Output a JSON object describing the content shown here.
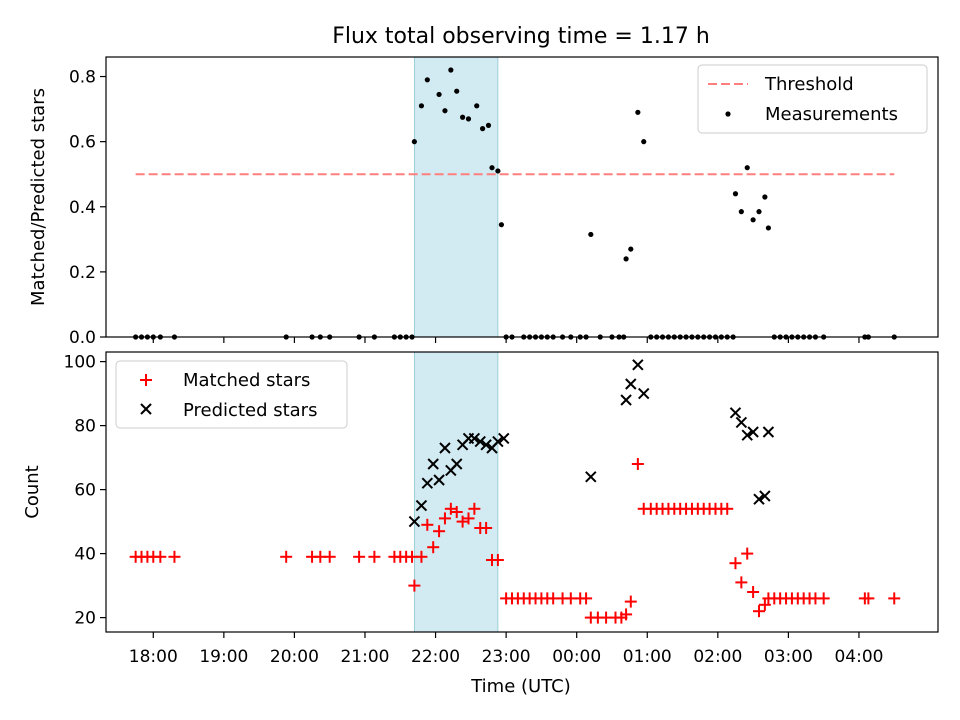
{
  "title": "Flux total observing time = 1.17 h",
  "x_axis_label": "Time (UTC)",
  "x_ticks": [
    "18:00",
    "19:00",
    "20:00",
    "21:00",
    "22:00",
    "23:00",
    "00:00",
    "01:00",
    "02:00",
    "03:00",
    "04:00"
  ],
  "colors": {
    "measurements": "#000000",
    "threshold": "#ff7f7f",
    "matched": "#ff0000",
    "predicted": "#000000",
    "shade": "#add8e6"
  },
  "chart_data": [
    {
      "type": "scatter",
      "ylabel": "Matched/Predicted stars",
      "ylim": [
        0,
        0.86
      ],
      "y_ticks": [
        "0.0",
        "0.2",
        "0.4",
        "0.6",
        "0.8"
      ],
      "y_tick_values": [
        0,
        0.2,
        0.4,
        0.6,
        0.8
      ],
      "legend_position": "top-right",
      "shaded_interval": [
        "21:42",
        "22:53"
      ],
      "threshold": {
        "name": "Threshold",
        "value": 0.5,
        "x_range": [
          "17:45",
          "04:30"
        ]
      },
      "series": [
        {
          "name": "Measurements",
          "points": [
            [
              "17:45",
              0
            ],
            [
              "17:50",
              0
            ],
            [
              "17:55",
              0
            ],
            [
              "18:00",
              0
            ],
            [
              "18:06",
              0
            ],
            [
              "18:18",
              0
            ],
            [
              "19:53",
              0
            ],
            [
              "20:15",
              0
            ],
            [
              "20:22",
              0
            ],
            [
              "20:30",
              0
            ],
            [
              "20:55",
              0
            ],
            [
              "21:08",
              0
            ],
            [
              "21:25",
              0
            ],
            [
              "21:30",
              0
            ],
            [
              "21:35",
              0
            ],
            [
              "21:40",
              0
            ],
            [
              "21:42",
              0.6
            ],
            [
              "21:48",
              0.71
            ],
            [
              "21:53",
              0.79
            ],
            [
              "22:03",
              0.745
            ],
            [
              "22:08",
              0.695
            ],
            [
              "22:13",
              0.82
            ],
            [
              "22:18",
              0.755
            ],
            [
              "22:23",
              0.675
            ],
            [
              "22:28",
              0.67
            ],
            [
              "22:35",
              0.71
            ],
            [
              "22:40",
              0.64
            ],
            [
              "22:45",
              0.65
            ],
            [
              "22:48",
              0.52
            ],
            [
              "22:53",
              0.51
            ],
            [
              "22:56",
              0.345
            ],
            [
              "23:00",
              0
            ],
            [
              "23:05",
              0
            ],
            [
              "23:15",
              0
            ],
            [
              "23:20",
              0
            ],
            [
              "23:25",
              0
            ],
            [
              "23:30",
              0
            ],
            [
              "23:35",
              0
            ],
            [
              "23:40",
              0
            ],
            [
              "23:48",
              0
            ],
            [
              "23:55",
              0
            ],
            [
              "00:03",
              0
            ],
            [
              "00:08",
              0
            ],
            [
              "00:12",
              0.315
            ],
            [
              "00:20",
              0
            ],
            [
              "00:30",
              0
            ],
            [
              "00:36",
              0
            ],
            [
              "00:40",
              0
            ],
            [
              "00:42",
              0.24
            ],
            [
              "00:46",
              0.27
            ],
            [
              "00:52",
              0.69
            ],
            [
              "00:57",
              0.6
            ],
            [
              "01:03",
              0
            ],
            [
              "01:08",
              0
            ],
            [
              "01:13",
              0
            ],
            [
              "01:18",
              0
            ],
            [
              "01:23",
              0
            ],
            [
              "01:28",
              0
            ],
            [
              "01:33",
              0
            ],
            [
              "01:38",
              0
            ],
            [
              "01:43",
              0
            ],
            [
              "01:48",
              0
            ],
            [
              "01:53",
              0
            ],
            [
              "01:58",
              0
            ],
            [
              "02:03",
              0
            ],
            [
              "02:08",
              0
            ],
            [
              "02:13",
              0
            ],
            [
              "02:15",
              0.44
            ],
            [
              "02:20",
              0.385
            ],
            [
              "02:25",
              0.52
            ],
            [
              "02:30",
              0.36
            ],
            [
              "02:35",
              0.385
            ],
            [
              "02:40",
              0.43
            ],
            [
              "02:43",
              0.335
            ],
            [
              "02:48",
              0
            ],
            [
              "02:53",
              0
            ],
            [
              "02:58",
              0
            ],
            [
              "03:03",
              0
            ],
            [
              "03:08",
              0
            ],
            [
              "03:13",
              0
            ],
            [
              "03:18",
              0
            ],
            [
              "03:23",
              0
            ],
            [
              "03:30",
              0
            ],
            [
              "04:05",
              0
            ],
            [
              "04:08",
              0
            ],
            [
              "04:30",
              0
            ]
          ]
        }
      ]
    },
    {
      "type": "scatter",
      "ylabel": "Count",
      "ylim": [
        15.5,
        103
      ],
      "y_ticks": [
        "20",
        "40",
        "60",
        "80",
        "100"
      ],
      "y_tick_values": [
        20,
        40,
        60,
        80,
        100
      ],
      "legend_position": "top-left",
      "shaded_interval": [
        "21:42",
        "22:53"
      ],
      "series": [
        {
          "name": "Matched stars",
          "marker": "+",
          "points": [
            [
              "17:45",
              39
            ],
            [
              "17:50",
              39
            ],
            [
              "17:55",
              39
            ],
            [
              "18:00",
              39
            ],
            [
              "18:06",
              39
            ],
            [
              "18:18",
              39
            ],
            [
              "19:53",
              39
            ],
            [
              "20:15",
              39
            ],
            [
              "20:22",
              39
            ],
            [
              "20:30",
              39
            ],
            [
              "20:55",
              39
            ],
            [
              "21:08",
              39
            ],
            [
              "21:25",
              39
            ],
            [
              "21:30",
              39
            ],
            [
              "21:35",
              39
            ],
            [
              "21:40",
              39
            ],
            [
              "21:42",
              30
            ],
            [
              "21:48",
              39
            ],
            [
              "21:53",
              49
            ],
            [
              "21:58",
              42
            ],
            [
              "22:03",
              47
            ],
            [
              "22:08",
              51
            ],
            [
              "22:13",
              54
            ],
            [
              "22:18",
              53
            ],
            [
              "22:23",
              50
            ],
            [
              "22:28",
              51
            ],
            [
              "22:33",
              54
            ],
            [
              "22:38",
              48
            ],
            [
              "22:43",
              48
            ],
            [
              "22:48",
              38
            ],
            [
              "22:53",
              38
            ],
            [
              "23:00",
              26
            ],
            [
              "23:05",
              26
            ],
            [
              "23:10",
              26
            ],
            [
              "23:15",
              26
            ],
            [
              "23:20",
              26
            ],
            [
              "23:25",
              26
            ],
            [
              "23:30",
              26
            ],
            [
              "23:35",
              26
            ],
            [
              "23:40",
              26
            ],
            [
              "23:48",
              26
            ],
            [
              "23:55",
              26
            ],
            [
              "00:03",
              26
            ],
            [
              "00:08",
              26
            ],
            [
              "00:12",
              20
            ],
            [
              "00:18",
              20
            ],
            [
              "00:25",
              20
            ],
            [
              "00:33",
              20
            ],
            [
              "00:38",
              20
            ],
            [
              "00:42",
              21
            ],
            [
              "00:46",
              25
            ],
            [
              "00:52",
              68
            ],
            [
              "00:57",
              54
            ],
            [
              "01:03",
              54
            ],
            [
              "01:08",
              54
            ],
            [
              "01:13",
              54
            ],
            [
              "01:18",
              54
            ],
            [
              "01:23",
              54
            ],
            [
              "01:28",
              54
            ],
            [
              "01:33",
              54
            ],
            [
              "01:38",
              54
            ],
            [
              "01:43",
              54
            ],
            [
              "01:48",
              54
            ],
            [
              "01:53",
              54
            ],
            [
              "01:58",
              54
            ],
            [
              "02:03",
              54
            ],
            [
              "02:08",
              54
            ],
            [
              "02:15",
              37
            ],
            [
              "02:20",
              31
            ],
            [
              "02:25",
              40
            ],
            [
              "02:30",
              28
            ],
            [
              "02:35",
              22
            ],
            [
              "02:40",
              24
            ],
            [
              "02:43",
              26
            ],
            [
              "02:48",
              26
            ],
            [
              "02:53",
              26
            ],
            [
              "02:58",
              26
            ],
            [
              "03:03",
              26
            ],
            [
              "03:08",
              26
            ],
            [
              "03:13",
              26
            ],
            [
              "03:18",
              26
            ],
            [
              "03:23",
              26
            ],
            [
              "03:30",
              26
            ],
            [
              "04:05",
              26
            ],
            [
              "04:08",
              26
            ],
            [
              "04:30",
              26
            ]
          ]
        },
        {
          "name": "Predicted stars",
          "marker": "x",
          "points": [
            [
              "21:42",
              50
            ],
            [
              "21:48",
              55
            ],
            [
              "21:53",
              62
            ],
            [
              "21:58",
              68
            ],
            [
              "22:03",
              63
            ],
            [
              "22:08",
              73
            ],
            [
              "22:13",
              66
            ],
            [
              "22:18",
              68
            ],
            [
              "22:23",
              74
            ],
            [
              "22:28",
              76
            ],
            [
              "22:33",
              76
            ],
            [
              "22:38",
              75
            ],
            [
              "22:43",
              74
            ],
            [
              "22:48",
              73
            ],
            [
              "22:53",
              75
            ],
            [
              "22:58",
              76
            ],
            [
              "00:12",
              64
            ],
            [
              "00:42",
              88
            ],
            [
              "00:46",
              93
            ],
            [
              "00:52",
              99
            ],
            [
              "00:57",
              90
            ],
            [
              "02:15",
              84
            ],
            [
              "02:20",
              81
            ],
            [
              "02:25",
              77
            ],
            [
              "02:30",
              78
            ],
            [
              "02:35",
              57
            ],
            [
              "02:40",
              58
            ],
            [
              "02:43",
              78
            ]
          ]
        }
      ]
    }
  ]
}
